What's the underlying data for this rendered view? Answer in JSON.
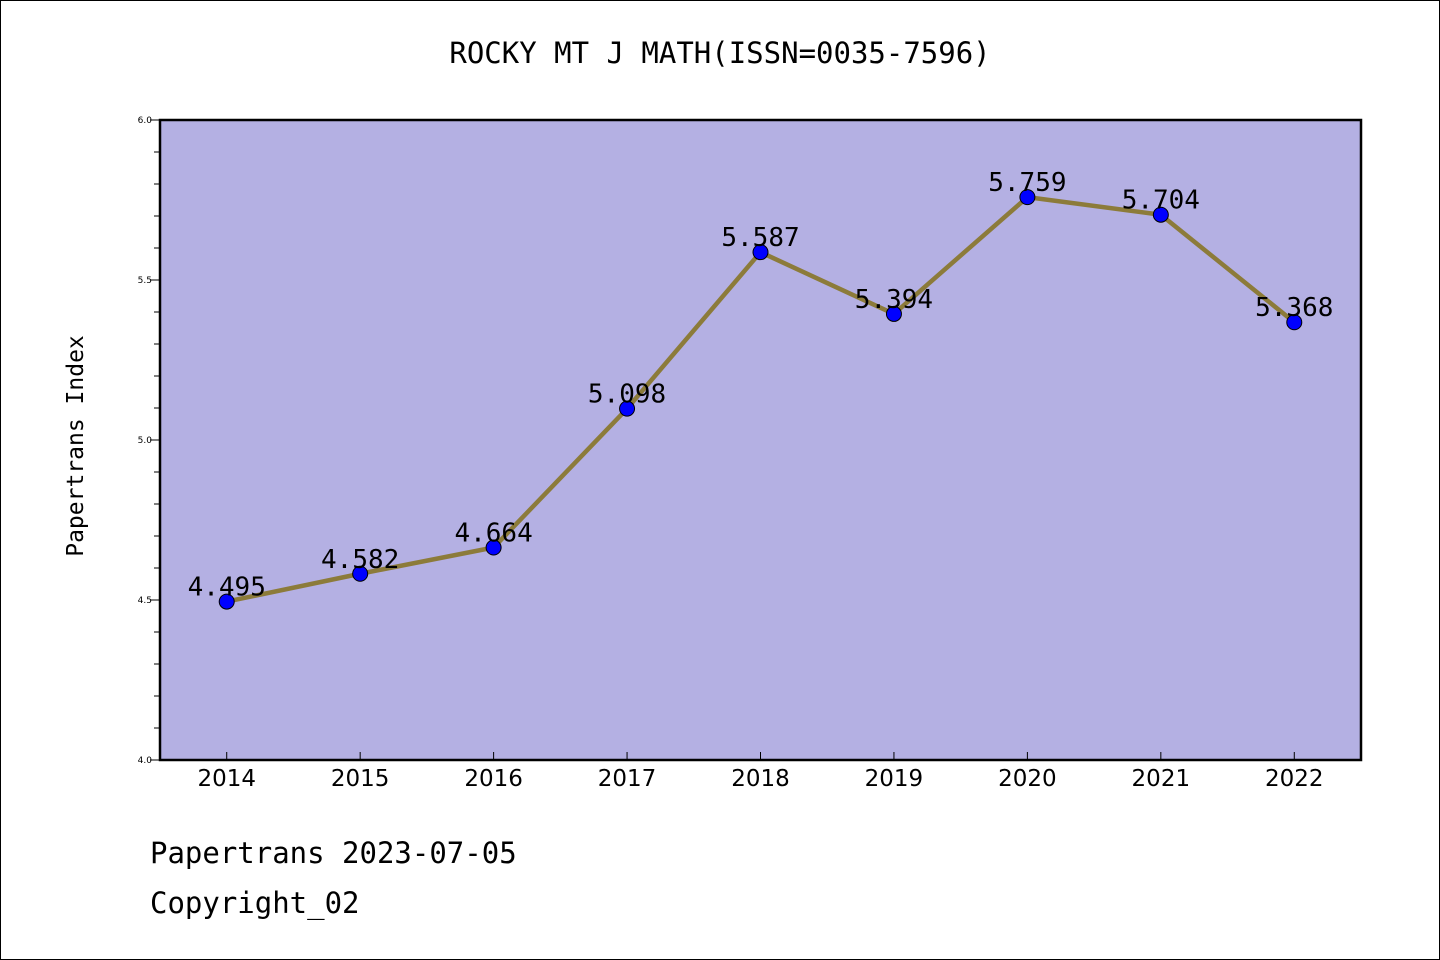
{
  "chart_data": {
    "type": "line",
    "title": "ROCKY MT J MATH(ISSN=0035-7596)",
    "xlabel": "",
    "ylabel": "Papertrans Index",
    "categories": [
      "2014",
      "2015",
      "2016",
      "2017",
      "2018",
      "2019",
      "2020",
      "2021",
      "2022"
    ],
    "series": [
      {
        "values": [
          4.495,
          4.582,
          4.664,
          5.098,
          5.587,
          5.394,
          5.759,
          5.704,
          5.368
        ],
        "labels": [
          "4.495",
          "4.582",
          "4.664",
          "5.098",
          "5.587",
          "5.394",
          "5.759",
          "5.704",
          "5.368"
        ]
      }
    ],
    "ylim": [
      4.0,
      6.0
    ],
    "yticks": [
      "4.0",
      "4.5",
      "5.0",
      "5.5",
      "6.0"
    ],
    "grid": false,
    "colors": {
      "plot_background": "#b4b0e3",
      "line": "#8c7b3a",
      "marker": "#0000ff"
    }
  },
  "footer": {
    "date_line": "Papertrans 2023-07-05",
    "copyright": "Copyright_02"
  }
}
